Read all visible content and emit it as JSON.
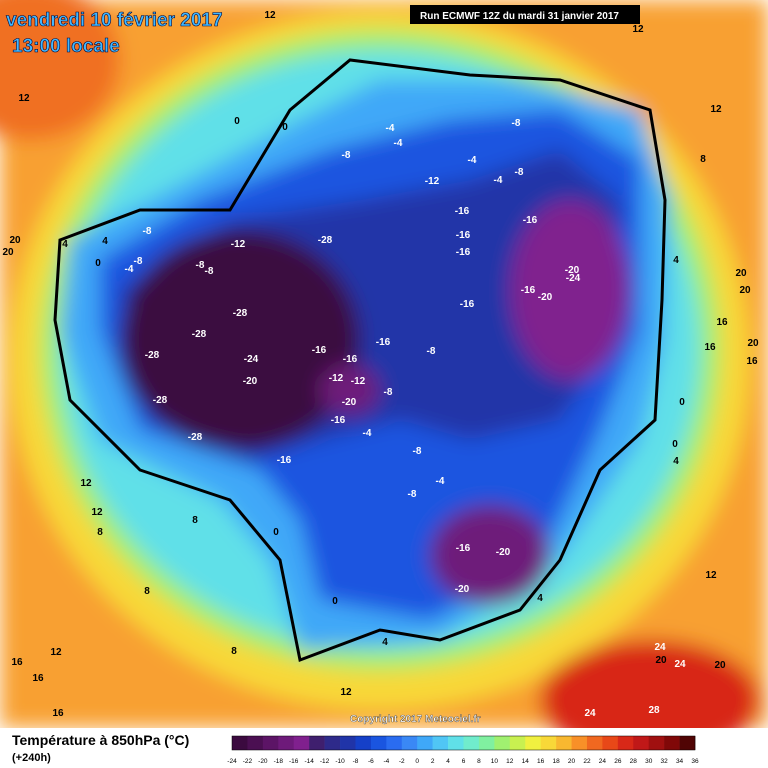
{
  "header": {
    "title": "vendredi 10 février 2017",
    "subtitle": "13:00 locale",
    "run": "Run ECMWF 12Z du mardi 31 janvier 2017"
  },
  "footer": {
    "copyright": "Copyright 2017 Meteociel.fr",
    "legend_title": "Température à 850hPa (°C)",
    "lead": "(+240h)"
  },
  "colorbar": {
    "ticks": [
      -24,
      -22,
      -20,
      -18,
      -16,
      -14,
      -12,
      -10,
      -8,
      -6,
      -4,
      -2,
      0,
      2,
      4,
      6,
      8,
      10,
      12,
      14,
      16,
      18,
      20,
      22,
      24,
      26,
      28,
      30,
      32,
      34,
      36
    ],
    "colors": [
      "#3b0a3f",
      "#4b0f52",
      "#5c1466",
      "#6e1a7a",
      "#80208e",
      "#3f1f6e",
      "#2e2a8a",
      "#2034a8",
      "#1540c8",
      "#1a55e0",
      "#2a6cf0",
      "#3a88f5",
      "#3fa8f8",
      "#50c6f5",
      "#60e0e8",
      "#70eccc",
      "#80f0a0",
      "#a0f070",
      "#c8f050",
      "#f0f040",
      "#f8d838",
      "#f8b830",
      "#f89028",
      "#f06820",
      "#e84818",
      "#d82818",
      "#c01818",
      "#a01010",
      "#800808",
      "#500404"
    ]
  },
  "map": {
    "contour_labels": [
      -28,
      -28,
      -28,
      -28,
      -28,
      -28,
      -24,
      -24,
      -20,
      -20,
      -20,
      -20,
      -20,
      -20,
      -16,
      -16,
      -16,
      -16,
      -16,
      -16,
      -16,
      -16,
      -16,
      -16,
      -16,
      -16,
      -12,
      -12,
      -12,
      -12,
      -8,
      -8,
      -8,
      -8,
      -8,
      -8,
      -8,
      -8,
      -8,
      -8,
      -8,
      -4,
      -4,
      -4,
      -4,
      -4,
      -4,
      -4,
      0,
      0,
      0,
      0,
      0,
      0,
      0,
      4,
      4,
      4,
      4,
      4,
      4,
      8,
      8,
      8,
      8,
      8,
      12,
      12,
      12,
      12,
      12,
      12,
      12,
      12,
      12,
      16,
      16,
      16,
      16,
      16,
      16,
      20,
      20,
      20,
      20,
      20,
      20,
      20,
      24,
      24,
      24,
      28
    ]
  }
}
